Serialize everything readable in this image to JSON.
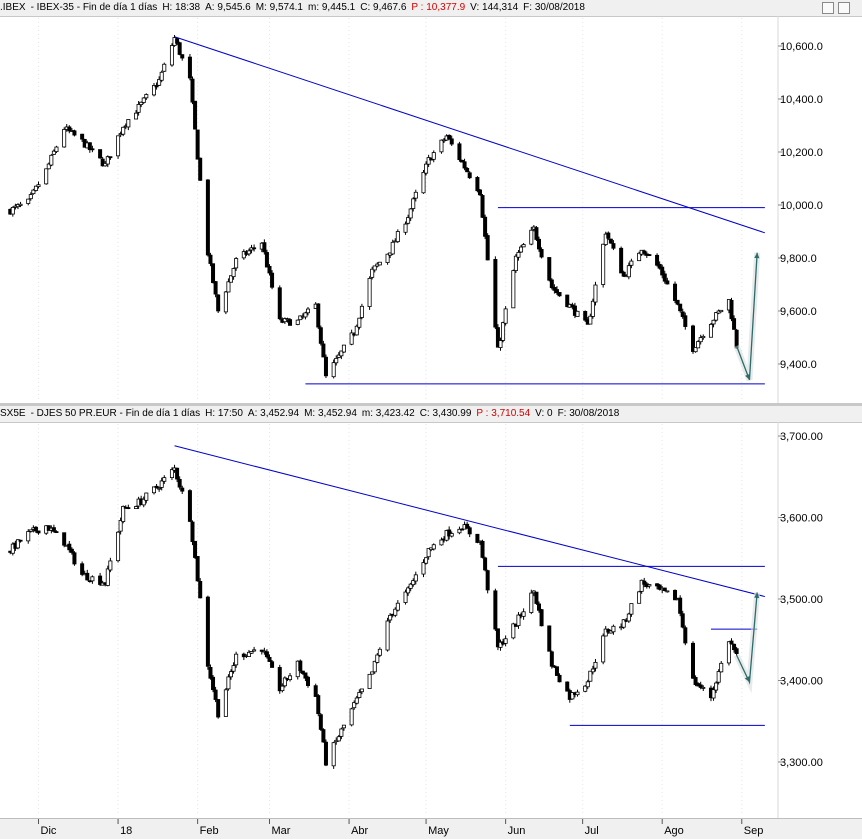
{
  "header1": {
    "prefix": ".IBEX",
    "text": "- IBEX-35 - Fin de día 1 días",
    "h": "H: 18:38",
    "a": "A: 9,545.6",
    "m": "M: 9,574.1",
    "mm": "m: 9,445.1",
    "c": "C: 9,467.6",
    "p": "P : 10,377.9",
    "v": "V: 144,314",
    "f": "F: 30/08/2018"
  },
  "header2": {
    "prefix": "SX5E",
    "text": "- DJES 50 PR.EUR - Fin de día 1 días",
    "h": "H: 17:50",
    "a": "A: 3,452.94",
    "m": "M: 3,452.94",
    "mm": "m: 3,423.42",
    "c": "C: 3,430.99",
    "p": "P : 3,710.54",
    "v": "V: 0",
    "f": "F: 30/08/2018"
  },
  "x_axis_labels": [
    "Dic",
    "18",
    "Feb",
    "Mar",
    "Abr",
    "May",
    "Jun",
    "Jul",
    "Ago",
    "Sep"
  ],
  "colors": {
    "candle": "#000000",
    "trendline": "#0000cc",
    "arrow": "#2e6b6b",
    "up_fill": "#ffffff"
  },
  "chart_data": [
    {
      "type": "candlestick",
      "title": ".IBEX - IBEX-35",
      "y_ticks": [
        "10,600.0",
        "10,400.0",
        "10,200.0",
        "10,000.0",
        "9,800.0",
        "9,600.0",
        "9,400.0"
      ],
      "ylim": [
        9300,
        10700
      ],
      "close_points": [
        [
          "2017-11-20",
          9980
        ],
        [
          "2017-11-27",
          10010
        ],
        [
          "2017-12-04",
          10130
        ],
        [
          "2017-12-11",
          10290
        ],
        [
          "2017-12-18",
          10240
        ],
        [
          "2017-12-27",
          10150
        ],
        [
          "2018-01-03",
          10300
        ],
        [
          "2018-01-10",
          10380
        ],
        [
          "2018-01-17",
          10470
        ],
        [
          "2018-01-23",
          10630
        ],
        [
          "2018-01-29",
          10470
        ],
        [
          "2018-02-02",
          10090
        ],
        [
          "2018-02-05",
          9820
        ],
        [
          "2018-02-09",
          9600
        ],
        [
          "2018-02-16",
          9790
        ],
        [
          "2018-02-26",
          9860
        ],
        [
          "2018-03-05",
          9560
        ],
        [
          "2018-03-12",
          9560
        ],
        [
          "2018-03-19",
          9620
        ],
        [
          "2018-03-23",
          9350
        ],
        [
          "2018-04-03",
          9520
        ],
        [
          "2018-04-10",
          9750
        ],
        [
          "2018-04-17",
          9830
        ],
        [
          "2018-04-24",
          9960
        ],
        [
          "2018-05-02",
          10170
        ],
        [
          "2018-05-09",
          10260
        ],
        [
          "2018-05-15",
          10160
        ],
        [
          "2018-05-22",
          10050
        ],
        [
          "2018-05-29",
          9450
        ],
        [
          "2018-06-05",
          9800
        ],
        [
          "2018-06-12",
          9910
        ],
        [
          "2018-06-19",
          9690
        ],
        [
          "2018-06-26",
          9620
        ],
        [
          "2018-07-03",
          9540
        ],
        [
          "2018-07-10",
          9900
        ],
        [
          "2018-07-17",
          9730
        ],
        [
          "2018-07-24",
          9840
        ],
        [
          "2018-07-31",
          9760
        ],
        [
          "2018-08-07",
          9620
        ],
        [
          "2018-08-13",
          9460
        ],
        [
          "2018-08-20",
          9560
        ],
        [
          "2018-08-27",
          9640
        ],
        [
          "2018-08-30",
          9468
        ]
      ],
      "annotations": [
        {
          "type": "trendline",
          "from": [
            "2018-01-23",
            10635
          ],
          "to": [
            "2018-09-10",
            9895
          ]
        },
        {
          "type": "hline",
          "value": 9990,
          "from": "2018-05-29",
          "to": "2018-09-10"
        },
        {
          "type": "hline",
          "value": 9325,
          "from": "2018-03-15",
          "to": "2018-09-10"
        },
        {
          "type": "arrow",
          "points": [
            [
              "2018-08-30",
              9468
            ],
            [
              "2018-09-04",
              9340
            ],
            [
              "2018-09-07",
              9820
            ]
          ]
        }
      ]
    },
    {
      "type": "candlestick",
      "title": "SX5E - DJES 50 PR.EUR",
      "y_ticks": [
        "3,700.00",
        "3,600.00",
        "3,500.00",
        "3,400.00",
        "3,300.00"
      ],
      "ylim": [
        3240,
        3710
      ],
      "close_points": [
        [
          "2017-11-20",
          3560
        ],
        [
          "2017-11-27",
          3580
        ],
        [
          "2017-12-04",
          3590
        ],
        [
          "2017-12-11",
          3570
        ],
        [
          "2017-12-18",
          3530
        ],
        [
          "2017-12-27",
          3520
        ],
        [
          "2018-01-03",
          3610
        ],
        [
          "2018-01-10",
          3620
        ],
        [
          "2018-01-17",
          3640
        ],
        [
          "2018-01-23",
          3660
        ],
        [
          "2018-01-29",
          3600
        ],
        [
          "2018-02-02",
          3500
        ],
        [
          "2018-02-05",
          3420
        ],
        [
          "2018-02-09",
          3360
        ],
        [
          "2018-02-16",
          3430
        ],
        [
          "2018-02-26",
          3440
        ],
        [
          "2018-03-05",
          3390
        ],
        [
          "2018-03-12",
          3420
        ],
        [
          "2018-03-19",
          3380
        ],
        [
          "2018-03-23",
          3300
        ],
        [
          "2018-04-03",
          3370
        ],
        [
          "2018-04-10",
          3410
        ],
        [
          "2018-04-17",
          3480
        ],
        [
          "2018-04-24",
          3510
        ],
        [
          "2018-05-02",
          3560
        ],
        [
          "2018-05-09",
          3580
        ],
        [
          "2018-05-15",
          3590
        ],
        [
          "2018-05-22",
          3570
        ],
        [
          "2018-05-29",
          3440
        ],
        [
          "2018-06-05",
          3470
        ],
        [
          "2018-06-12",
          3510
        ],
        [
          "2018-06-19",
          3420
        ],
        [
          "2018-06-26",
          3380
        ],
        [
          "2018-07-03",
          3400
        ],
        [
          "2018-07-10",
          3460
        ],
        [
          "2018-07-17",
          3470
        ],
        [
          "2018-07-24",
          3520
        ],
        [
          "2018-07-31",
          3510
        ],
        [
          "2018-08-07",
          3500
        ],
        [
          "2018-08-13",
          3400
        ],
        [
          "2018-08-20",
          3380
        ],
        [
          "2018-08-27",
          3450
        ],
        [
          "2018-08-30",
          3431
        ]
      ],
      "annotations": [
        {
          "type": "trendline",
          "from": [
            "2018-01-23",
            3688
          ],
          "to": [
            "2018-09-10",
            3503
          ]
        },
        {
          "type": "hline",
          "value": 3540,
          "from": "2018-05-29",
          "to": "2018-09-10"
        },
        {
          "type": "hline",
          "value": 3345,
          "from": "2018-06-26",
          "to": "2018-09-10"
        },
        {
          "type": "hline",
          "value": 3463,
          "from": "2018-08-20",
          "to": "2018-09-07"
        },
        {
          "type": "arrow",
          "points": [
            [
              "2018-08-30",
              3431
            ],
            [
              "2018-09-04",
              3398
            ],
            [
              "2018-09-07",
              3508
            ]
          ]
        }
      ]
    }
  ]
}
